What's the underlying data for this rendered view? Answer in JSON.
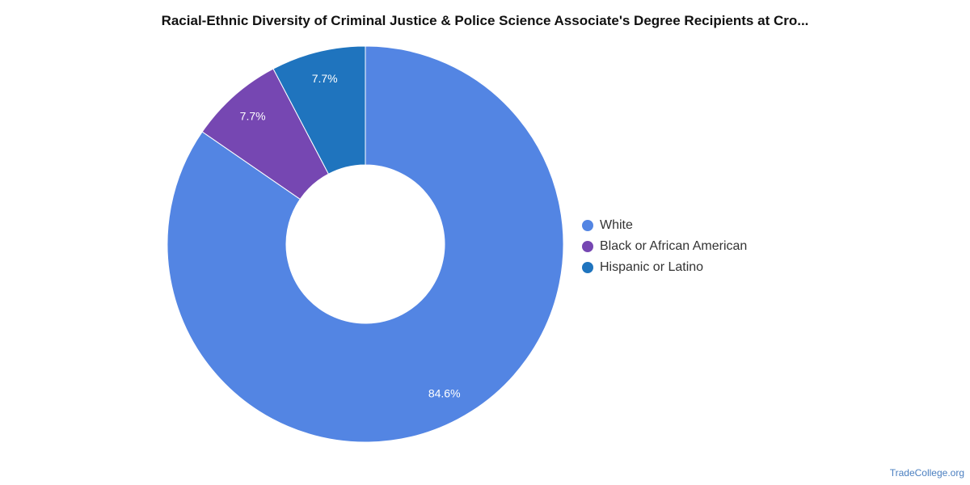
{
  "chart_data": {
    "type": "pie",
    "title": "Racial-Ethnic Diversity of Criminal Justice & Police Science Associate's Degree Recipients at Cro...",
    "categories": [
      "White",
      "Black or African American",
      "Hispanic or Latino"
    ],
    "values": [
      84.6,
      7.7,
      7.7
    ],
    "value_labels": [
      "84.6%",
      "7.7%",
      "7.7%"
    ],
    "colors": [
      "#5385e3",
      "#7647b2",
      "#1f74be"
    ],
    "legend_position": "right",
    "donut": true
  },
  "footer": {
    "credit": "TradeCollege.org"
  }
}
